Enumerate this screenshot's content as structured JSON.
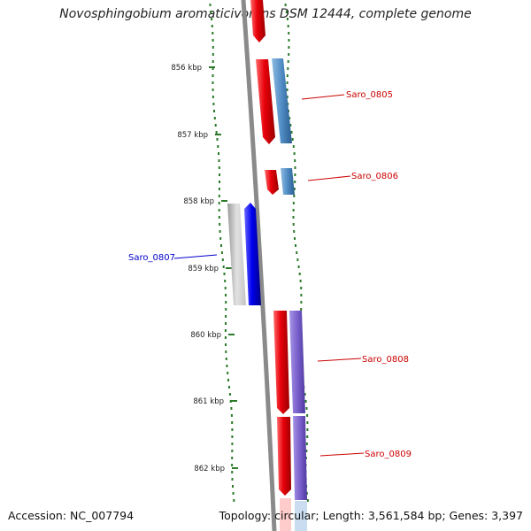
{
  "title": "Novosphingobium aromaticivorans DSM 12444, complete genome",
  "accession": "Accession: NC_007794",
  "topology": "Topology: circular; Length: 3,561,584 bp; Genes: 3,397",
  "ticks": [
    "856 kbp",
    "857 kbp",
    "858 kbp",
    "859 kbp",
    "860 kbp",
    "861 kbp",
    "862 kbp"
  ],
  "gene_labels": [
    {
      "text": "Saro_0805",
      "color": "#cc0000"
    },
    {
      "text": "Saro_0806",
      "color": "#cc0000"
    },
    {
      "text": "Saro_0807",
      "color": "#0000cc"
    },
    {
      "text": "Saro_0808",
      "color": "#cc0000"
    },
    {
      "text": "Saro_0809",
      "color": "#cc0000"
    }
  ],
  "colors": {
    "forward_cds": "#e8000a",
    "reverse_cds": "#0000ee",
    "blast_blue": "#4f8bc4",
    "blast_purple": "#7a60cc",
    "grey_gene": "#b9b9b9",
    "backbone": "#8a8a8a",
    "gc_track": "#2a7a2a"
  }
}
